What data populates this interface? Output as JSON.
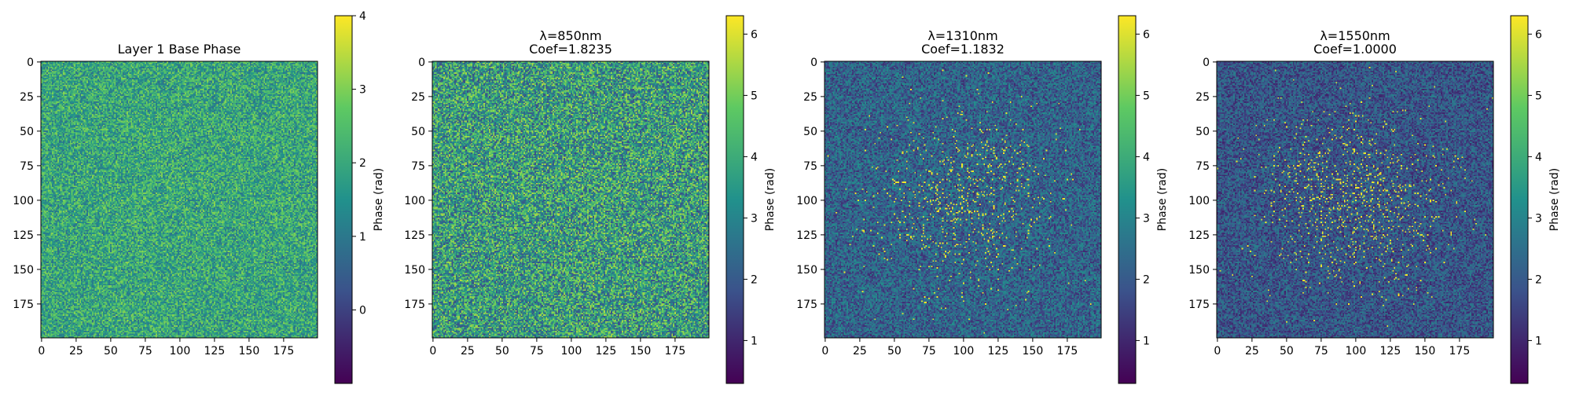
{
  "chart_data": [
    {
      "type": "heatmap",
      "title_lines": [
        "Layer 1 Base Phase"
      ],
      "x_ticks": [
        0,
        25,
        50,
        75,
        100,
        125,
        150,
        175
      ],
      "y_ticks": [
        0,
        25,
        50,
        75,
        100,
        125,
        150,
        175
      ],
      "grid_size": [
        200,
        200
      ],
      "colorbar": {
        "label": "Phase (rad)",
        "range": [
          -1,
          4
        ],
        "ticks": [
          0,
          1,
          2,
          3,
          4
        ]
      },
      "colormap": [
        "#440154",
        "#3b528b",
        "#21918c",
        "#5ec962",
        "#fde725"
      ],
      "pattern": {
        "mean": 1.95,
        "spread": 1.15,
        "center_boost": 0.25,
        "speckle": 0.0,
        "seed": 11
      }
    },
    {
      "type": "heatmap",
      "title_lines": [
        "λ=850nm",
        "Coef=1.8235"
      ],
      "x_ticks": [
        0,
        25,
        50,
        75,
        100,
        125,
        150,
        175
      ],
      "y_ticks": [
        0,
        25,
        50,
        75,
        100,
        125,
        150,
        175
      ],
      "grid_size": [
        200,
        200
      ],
      "colorbar": {
        "label": "Phase (rad)",
        "range": [
          0.3,
          6.3
        ],
        "ticks": [
          1,
          2,
          3,
          4,
          5,
          6
        ]
      },
      "colormap": [
        "#440154",
        "#3b528b",
        "#21918c",
        "#5ec962",
        "#fde725"
      ],
      "pattern": {
        "mean": 3.6,
        "spread": 2.0,
        "center_boost": 0.3,
        "speckle": 0.0,
        "seed": 23
      }
    },
    {
      "type": "heatmap",
      "title_lines": [
        "λ=1310nm",
        "Coef=1.1832"
      ],
      "x_ticks": [
        0,
        25,
        50,
        75,
        100,
        125,
        150,
        175
      ],
      "y_ticks": [
        0,
        25,
        50,
        75,
        100,
        125,
        150,
        175
      ],
      "grid_size": [
        200,
        200
      ],
      "colorbar": {
        "label": "Phase (rad)",
        "range": [
          0.3,
          6.3
        ],
        "ticks": [
          1,
          2,
          3,
          4,
          5,
          6
        ]
      },
      "colormap": [
        "#440154",
        "#3b528b",
        "#21918c",
        "#5ec962",
        "#fde725"
      ],
      "pattern": {
        "mean": 2.2,
        "spread": 1.1,
        "center_boost": 0.0,
        "speckle": 0.09,
        "seed": 37
      }
    },
    {
      "type": "heatmap",
      "title_lines": [
        "λ=1550nm",
        "Coef=1.0000"
      ],
      "x_ticks": [
        0,
        25,
        50,
        75,
        100,
        125,
        150,
        175
      ],
      "y_ticks": [
        0,
        25,
        50,
        75,
        100,
        125,
        150,
        175
      ],
      "grid_size": [
        200,
        200
      ],
      "colorbar": {
        "label": "Phase (rad)",
        "range": [
          0.3,
          6.3
        ],
        "ticks": [
          1,
          2,
          3,
          4,
          5,
          6
        ]
      },
      "colormap": [
        "#440154",
        "#3b528b",
        "#21918c",
        "#5ec962",
        "#fde725"
      ],
      "pattern": {
        "mean": 1.9,
        "spread": 1.0,
        "center_boost": 0.0,
        "speckle": 0.11,
        "seed": 53
      }
    }
  ]
}
